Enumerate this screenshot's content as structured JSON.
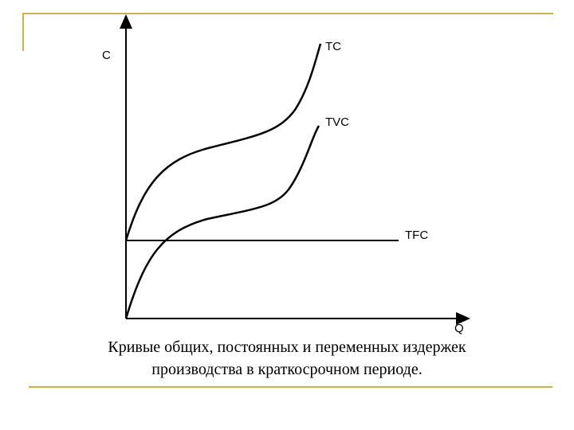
{
  "diagram": {
    "y_axis_label": "C",
    "x_axis_label": "Q",
    "curves": {
      "tc": "TC",
      "tvc": "TVC",
      "tfc": "TFC"
    }
  },
  "caption": {
    "line1": "Кривые общих, постоянных и переменных издержек",
    "line2": "производства в краткосрочном периоде."
  }
}
